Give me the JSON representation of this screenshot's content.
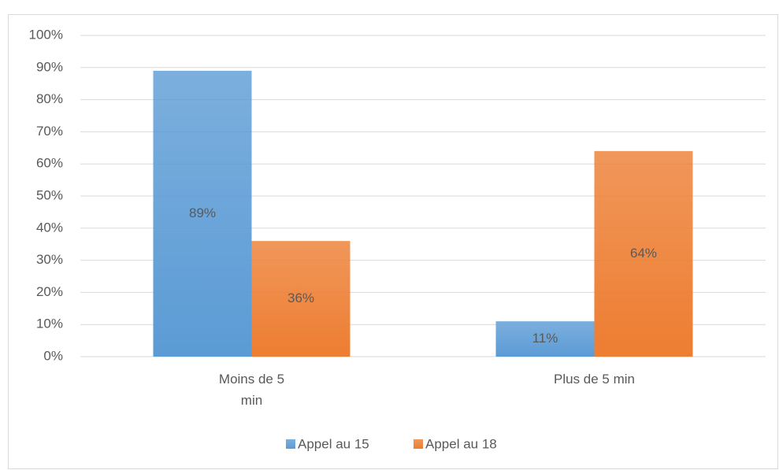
{
  "chart_data": {
    "type": "bar",
    "categories": [
      "Moins de 5 min",
      "Plus de 5 min"
    ],
    "series": [
      {
        "name": "Appel au 15",
        "color": "#5b9bd5",
        "values": [
          89,
          11
        ],
        "value_labels": [
          "89%",
          "11%"
        ]
      },
      {
        "name": "Appel au 18",
        "color": "#ed7d31",
        "values": [
          36,
          64
        ],
        "value_labels": [
          "36%",
          "64%"
        ]
      }
    ],
    "ylim": [
      0,
      100
    ],
    "yticks": [
      {
        "value": 0,
        "label": "0%"
      },
      {
        "value": 10,
        "label": "10%"
      },
      {
        "value": 20,
        "label": "20%"
      },
      {
        "value": 30,
        "label": "30%"
      },
      {
        "value": 40,
        "label": "40%"
      },
      {
        "value": 50,
        "label": "50%"
      },
      {
        "value": 60,
        "label": "60%"
      },
      {
        "value": 70,
        "label": "70%"
      },
      {
        "value": 80,
        "label": "80%"
      },
      {
        "value": 90,
        "label": "90%"
      },
      {
        "value": 100,
        "label": "100%"
      }
    ],
    "grid": true,
    "legend": "bottom"
  }
}
